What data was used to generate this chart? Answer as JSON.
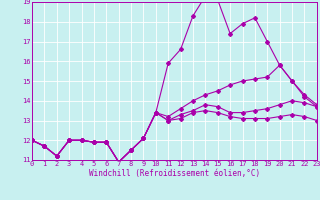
{
  "title": "",
  "xlabel": "Windchill (Refroidissement éolien,°C)",
  "ylabel": "",
  "bg_color": "#c8f0f0",
  "line_color": "#aa00aa",
  "grid_color": "#ffffff",
  "xmin": 0,
  "xmax": 23,
  "ymin": 11,
  "ymax": 19,
  "yticks": [
    11,
    12,
    13,
    14,
    15,
    16,
    17,
    18,
    19
  ],
  "xticks": [
    0,
    1,
    2,
    3,
    4,
    5,
    6,
    7,
    8,
    9,
    10,
    11,
    12,
    13,
    14,
    15,
    16,
    17,
    18,
    19,
    20,
    21,
    22,
    23
  ],
  "line1_x": [
    0,
    1,
    2,
    3,
    4,
    5,
    6,
    7,
    8,
    9,
    10,
    11,
    12,
    13,
    14,
    15,
    16,
    17,
    18,
    19,
    20,
    21,
    22,
    23
  ],
  "line1_y": [
    12.0,
    11.7,
    11.2,
    12.0,
    12.0,
    11.9,
    11.9,
    10.9,
    11.5,
    12.1,
    13.4,
    15.9,
    16.6,
    18.3,
    19.3,
    19.1,
    17.4,
    17.9,
    18.2,
    17.0,
    15.8,
    15.0,
    14.2,
    13.7
  ],
  "line2_x": [
    0,
    1,
    2,
    3,
    4,
    5,
    6,
    7,
    8,
    9,
    10,
    11,
    12,
    13,
    14,
    15,
    16,
    17,
    18,
    19,
    20,
    21,
    22,
    23
  ],
  "line2_y": [
    12.0,
    11.7,
    11.2,
    12.0,
    12.0,
    11.9,
    11.9,
    10.9,
    11.5,
    12.1,
    13.4,
    13.0,
    13.3,
    13.5,
    13.8,
    13.7,
    13.4,
    13.4,
    13.5,
    13.6,
    13.8,
    14.0,
    13.9,
    13.7
  ],
  "line3_x": [
    0,
    1,
    2,
    3,
    4,
    5,
    6,
    7,
    8,
    9,
    10,
    11,
    12,
    13,
    14,
    15,
    16,
    17,
    18,
    19,
    20,
    21,
    22,
    23
  ],
  "line3_y": [
    12.0,
    11.7,
    11.2,
    12.0,
    12.0,
    11.9,
    11.9,
    10.9,
    11.5,
    12.1,
    13.4,
    13.0,
    13.1,
    13.4,
    13.5,
    13.4,
    13.2,
    13.1,
    13.1,
    13.1,
    13.2,
    13.3,
    13.2,
    13.0
  ],
  "line4_x": [
    0,
    1,
    2,
    3,
    4,
    5,
    6,
    7,
    8,
    9,
    10,
    11,
    12,
    13,
    14,
    15,
    16,
    17,
    18,
    19,
    20,
    21,
    22,
    23
  ],
  "line4_y": [
    12.0,
    11.7,
    11.2,
    12.0,
    12.0,
    11.9,
    11.9,
    10.9,
    11.5,
    12.1,
    13.4,
    13.2,
    13.6,
    14.0,
    14.3,
    14.5,
    14.8,
    15.0,
    15.1,
    15.2,
    15.8,
    15.0,
    14.3,
    13.8
  ],
  "tick_fontsize": 5.0,
  "xlabel_fontsize": 5.5,
  "marker_size": 2.0,
  "line_width": 0.8
}
